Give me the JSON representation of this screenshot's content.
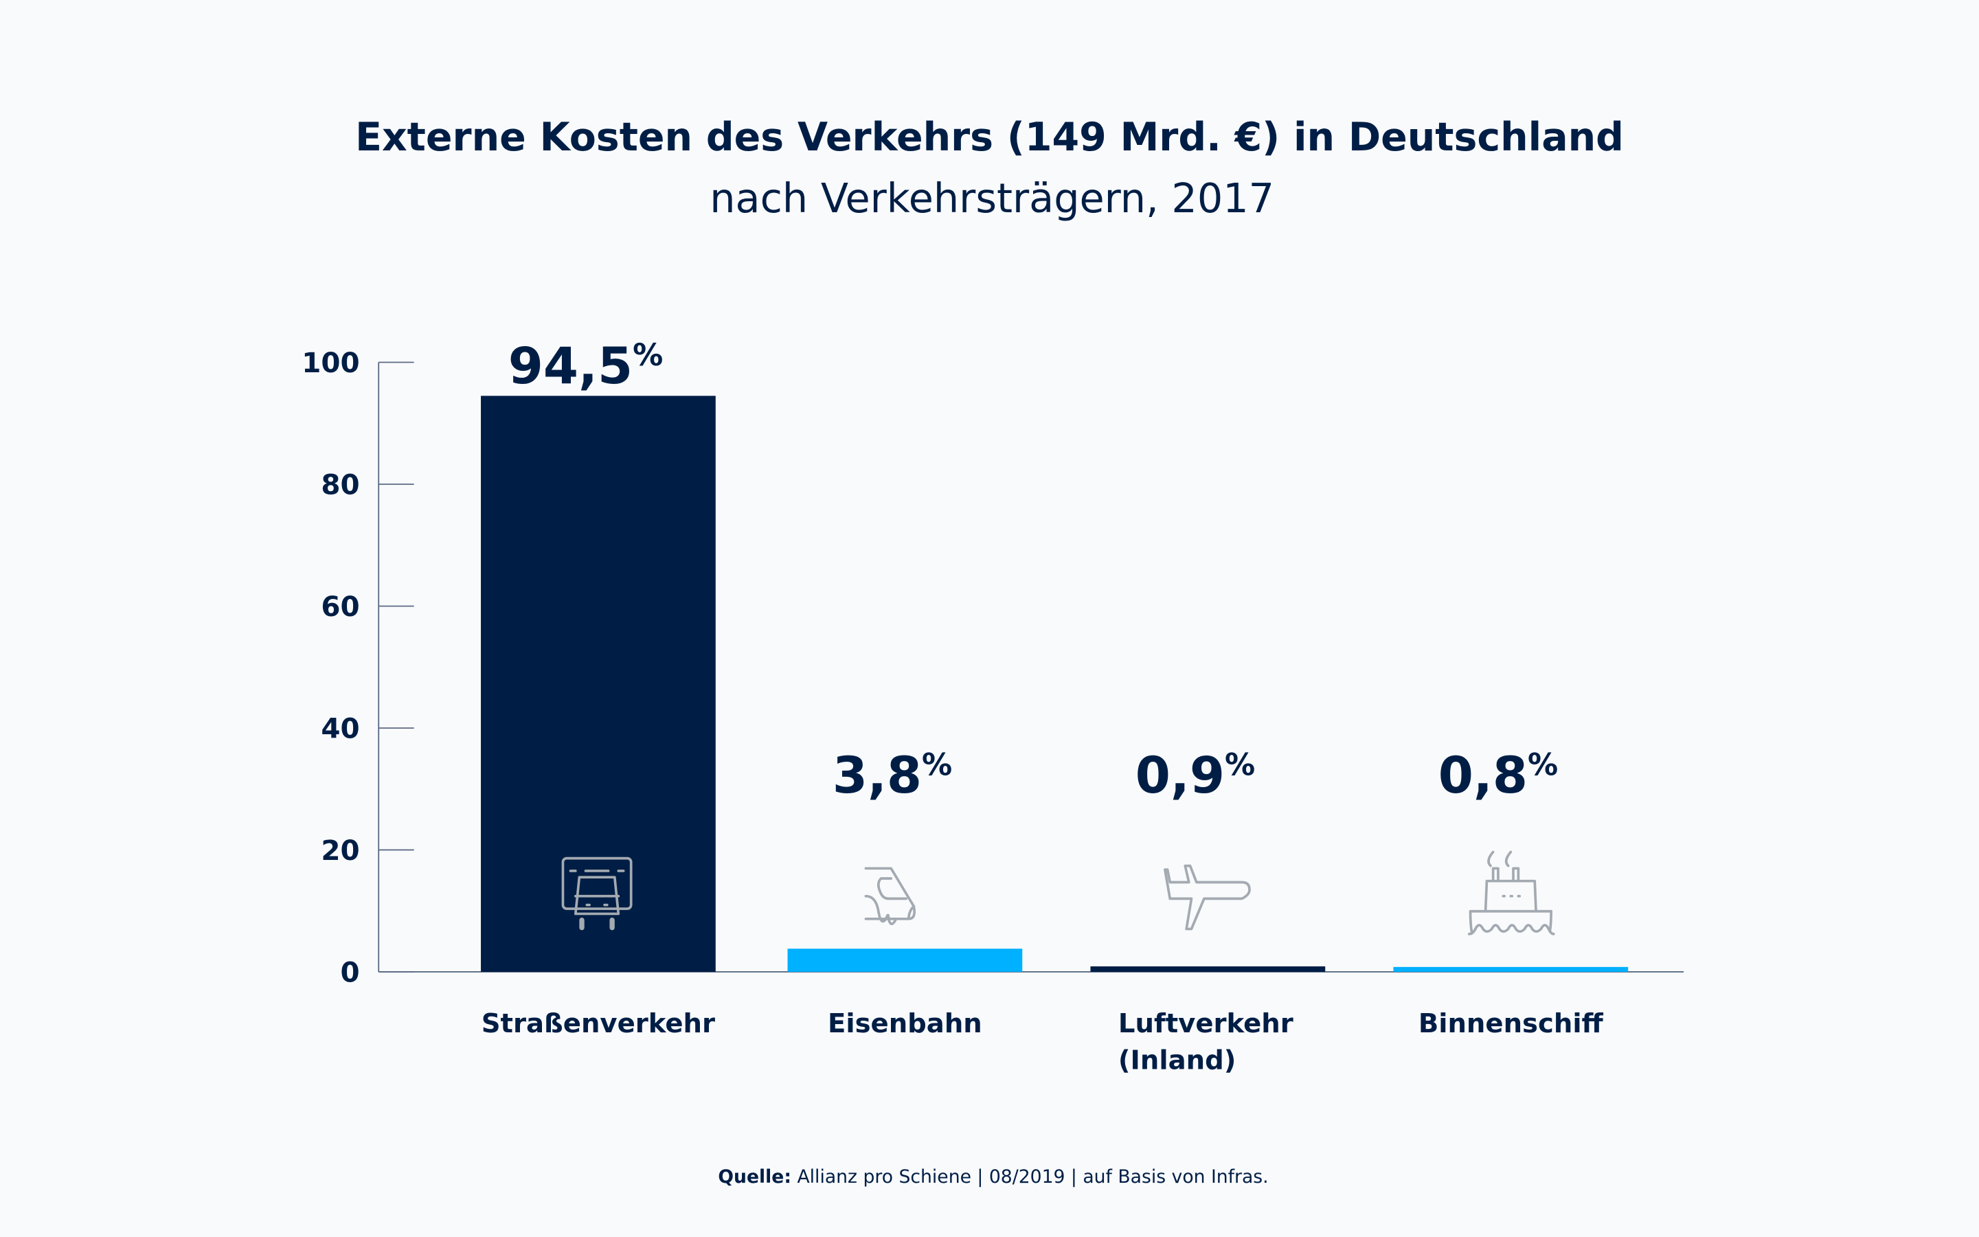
{
  "colors": {
    "navy": "#001e45",
    "cyan": "#00b1ff",
    "icon": "#a3aab1",
    "background": "#f9fafc",
    "axis": "#5a6a85"
  },
  "chart_data": {
    "type": "bar",
    "title": "Externe Kosten des Verkehrs (149 Mrd. €) in Deutschland",
    "subtitle": "nach Verkehrsträgern, 2017",
    "categories": [
      "Straßenverkehr",
      "Eisenbahn",
      "Luftverkehr (Inland)",
      "Binnenschiff"
    ],
    "category_lines": [
      [
        "Straßenverkehr"
      ],
      [
        "Eisenbahn"
      ],
      [
        "Luftverkehr",
        "(Inland)"
      ],
      [
        "Binnenschiff"
      ]
    ],
    "values": [
      94.5,
      3.8,
      0.9,
      0.8
    ],
    "value_labels": [
      "94,5",
      "3,8",
      "0,9",
      "0,8"
    ],
    "value_unit": "%",
    "bar_colors": [
      "#001e45",
      "#00b1ff",
      "#001e45",
      "#00b1ff"
    ],
    "icons": [
      "truck-icon",
      "train-icon",
      "airplane-icon",
      "ship-icon"
    ],
    "ylim": [
      0,
      100
    ],
    "yticks": [
      0,
      20,
      40,
      60,
      80,
      100
    ],
    "ytick_labels": [
      "0",
      "20",
      "40",
      "60",
      "80",
      "100"
    ],
    "grid": false,
    "legend": "none"
  },
  "footer": {
    "label": "Quelle:",
    "text": " Allianz pro Schiene | 08/2019 | auf Basis von Infras."
  }
}
